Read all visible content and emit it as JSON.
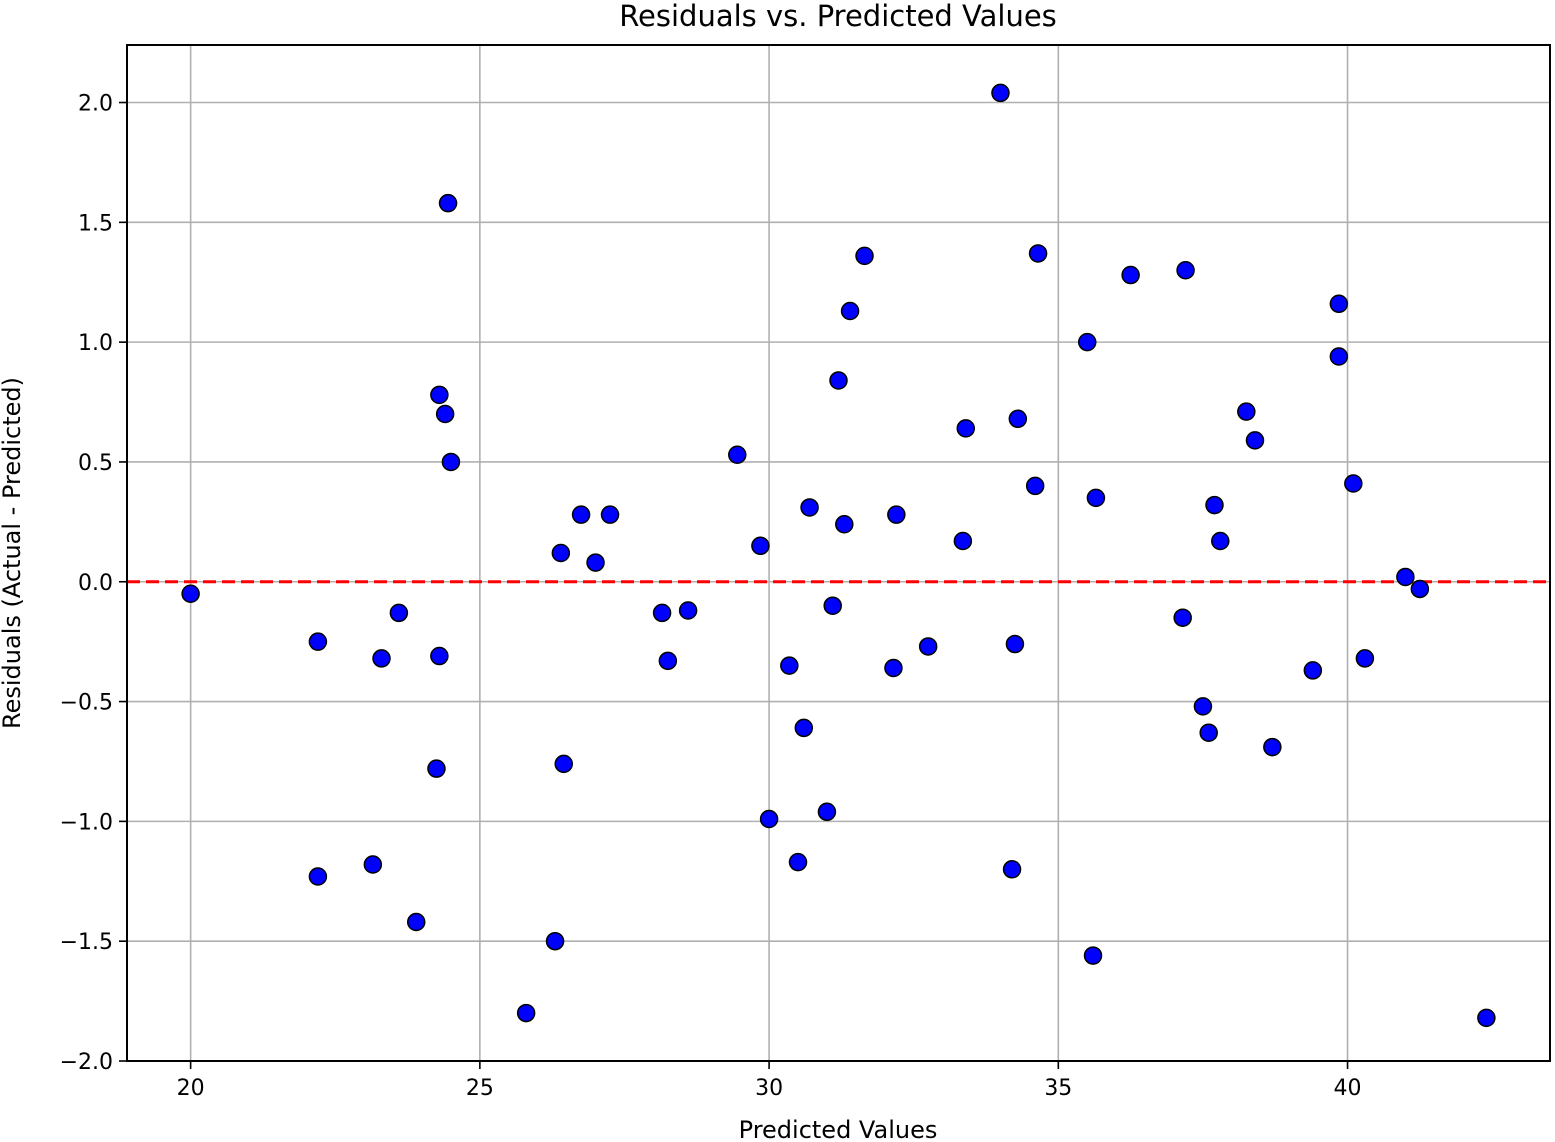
{
  "chart_data": {
    "type": "scatter",
    "title": "Residuals vs. Predicted Values",
    "xlabel": "Predicted Values",
    "ylabel": "Residuals (Actual - Predicted)",
    "xlim": [
      18.9,
      43.5
    ],
    "ylim": [
      -2.0,
      2.24
    ],
    "xticks": [
      20,
      25,
      30,
      35,
      40
    ],
    "yticks": [
      -2.0,
      -1.5,
      -1.0,
      -0.5,
      0.0,
      0.5,
      1.0,
      1.5,
      2.0
    ],
    "xtick_labels": [
      "20",
      "25",
      "30",
      "35",
      "40"
    ],
    "ytick_labels": [
      "−2.0",
      "−1.5",
      "−1.0",
      "−0.5",
      "0.0",
      "0.5",
      "1.0",
      "1.5",
      "2.0"
    ],
    "grid": true,
    "reference_line": {
      "y": 0.0,
      "style": "dashed",
      "color": "#ff0000"
    },
    "marker_color": "#0000ff",
    "marker_edge_color": "#000000",
    "series": [
      {
        "points": [
          [
            20.0,
            -0.05
          ],
          [
            22.2,
            -0.25
          ],
          [
            22.2,
            -1.23
          ],
          [
            23.15,
            -1.18
          ],
          [
            23.3,
            -0.32
          ],
          [
            23.6,
            -0.13
          ],
          [
            23.9,
            -1.42
          ],
          [
            24.25,
            -0.78
          ],
          [
            24.3,
            -0.31
          ],
          [
            24.3,
            0.78
          ],
          [
            24.4,
            0.7
          ],
          [
            24.45,
            1.58
          ],
          [
            24.5,
            0.5
          ],
          [
            25.8,
            -1.8
          ],
          [
            26.3,
            -1.5
          ],
          [
            26.4,
            0.12
          ],
          [
            26.45,
            -0.76
          ],
          [
            26.75,
            0.28
          ],
          [
            27.0,
            0.08
          ],
          [
            27.25,
            0.28
          ],
          [
            28.15,
            -0.13
          ],
          [
            28.25,
            -0.33
          ],
          [
            28.6,
            -0.12
          ],
          [
            29.45,
            0.53
          ],
          [
            29.85,
            0.15
          ],
          [
            30.0,
            -0.99
          ],
          [
            30.35,
            -0.35
          ],
          [
            30.5,
            -1.17
          ],
          [
            30.6,
            -0.61
          ],
          [
            30.7,
            0.31
          ],
          [
            31.0,
            -0.96
          ],
          [
            31.1,
            -0.1
          ],
          [
            31.2,
            0.84
          ],
          [
            31.3,
            0.24
          ],
          [
            31.4,
            1.13
          ],
          [
            31.65,
            1.36
          ],
          [
            32.15,
            -0.36
          ],
          [
            32.2,
            0.28
          ],
          [
            32.75,
            -0.27
          ],
          [
            33.35,
            0.17
          ],
          [
            33.4,
            0.64
          ],
          [
            34.0,
            2.04
          ],
          [
            34.2,
            -1.2
          ],
          [
            34.25,
            -0.26
          ],
          [
            34.3,
            0.68
          ],
          [
            34.6,
            0.4
          ],
          [
            34.65,
            1.37
          ],
          [
            35.5,
            1.0
          ],
          [
            35.6,
            -1.56
          ],
          [
            35.65,
            0.35
          ],
          [
            36.25,
            1.28
          ],
          [
            37.15,
            -0.15
          ],
          [
            37.2,
            1.3
          ],
          [
            37.5,
            -0.52
          ],
          [
            37.6,
            -0.63
          ],
          [
            37.7,
            0.32
          ],
          [
            37.8,
            0.17
          ],
          [
            38.25,
            0.71
          ],
          [
            38.4,
            0.59
          ],
          [
            38.7,
            -0.69
          ],
          [
            39.4,
            -0.37
          ],
          [
            39.85,
            1.16
          ],
          [
            39.85,
            0.94
          ],
          [
            40.1,
            0.41
          ],
          [
            40.3,
            -0.32
          ],
          [
            41.0,
            0.02
          ],
          [
            41.25,
            -0.03
          ],
          [
            42.4,
            -1.82
          ]
        ]
      }
    ]
  }
}
